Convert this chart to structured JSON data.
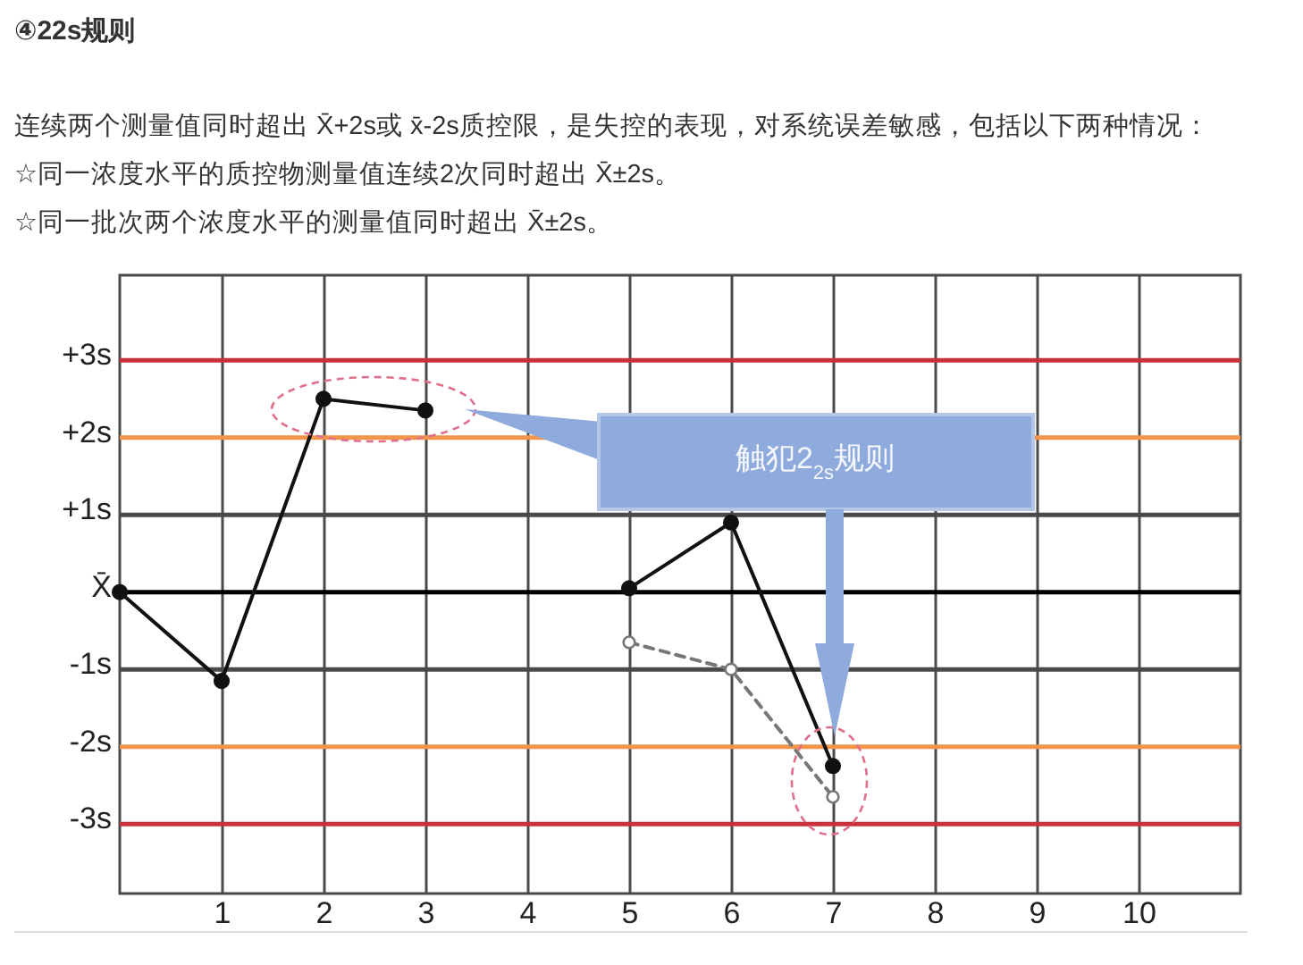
{
  "chart_data": {
    "type": "line",
    "title": "④22s规则",
    "subtitle": "连续两个测量值同时超出 X̄+2s或 x̄-2s质控限，是失控的表现，对系统误差敏感，包括以下两种情况：",
    "annotations": [
      "☆同一浓度水平的质控物测量值连续2次同时超出 X̄±2s。",
      "☆同一批次两个浓度水平的测量值同时超出 X̄±2s。",
      "触犯2$_{2s}$规则"
    ],
    "x": [
      0,
      1,
      2,
      3,
      4,
      5,
      6,
      7
    ],
    "series": [
      {
        "color": "#111111",
        "values": [
          0,
          -1.15,
          2.5,
          2.35,
          null,
          0.05,
          0.9,
          -2.25
        ],
        "line_style": "solid"
      },
      {
        "color": "#777777",
        "x": [
          5,
          6,
          7
        ],
        "values": [
          -0.65,
          -1.0,
          -2.65
        ],
        "line_style": "dashed"
      }
    ],
    "marker": "circle",
    "xlim": [
      0,
      11
    ],
    "xticks": [
      1,
      2,
      3,
      4,
      5,
      6,
      7,
      8,
      9,
      10
    ],
    "ylim": [
      -3.9,
      4.1
    ],
    "yticks": [
      {
        "value": -3,
        "label": "-3s"
      },
      {
        "value": -2,
        "label": "-2s"
      },
      {
        "value": -1,
        "label": "-1s"
      },
      {
        "value": 0,
        "label": "X̄"
      },
      {
        "value": 1,
        "label": "+1s"
      },
      {
        "value": 2,
        "label": "+2s"
      },
      {
        "value": 3,
        "label": "+3s"
      }
    ],
    "grid": "x",
    "ref_lines": [
      {
        "axis": "y",
        "value": 3,
        "color": "#c8303c"
      },
      {
        "axis": "y",
        "value": 2,
        "color": "#f0954a"
      },
      {
        "axis": "y",
        "value": 1,
        "color": "#4a4a4a"
      },
      {
        "axis": "y",
        "value": 0,
        "color": "#000000"
      },
      {
        "axis": "y",
        "value": -1,
        "color": "#4a4a4a"
      },
      {
        "axis": "y",
        "value": -2,
        "color": "#f0954a"
      },
      {
        "axis": "y",
        "value": -3,
        "color": "#c8303c"
      }
    ]
  }
}
